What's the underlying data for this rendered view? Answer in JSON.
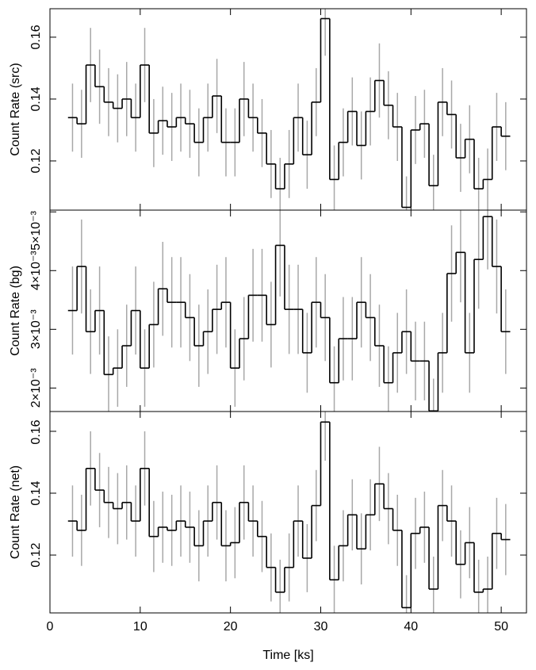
{
  "chart_data": [
    {
      "type": "step",
      "ylabel": "Count Rate (src)",
      "color": "#000000",
      "error_color": "#a8a8a8",
      "xlim": [
        0,
        52.8
      ],
      "xticks": [
        0,
        10,
        20,
        30,
        40,
        50
      ],
      "ylim": [
        0.1041,
        0.1692
      ],
      "yticks": [
        0.12,
        0.14,
        0.16
      ],
      "x": [
        2.5,
        3.5,
        4.5,
        5.5,
        6.5,
        7.5,
        8.5,
        9.5,
        10.5,
        11.5,
        12.5,
        13.5,
        14.5,
        15.5,
        16.5,
        17.5,
        18.5,
        19.5,
        20.5,
        21.5,
        22.5,
        23.5,
        24.5,
        25.5,
        26.5,
        27.5,
        28.5,
        29.5,
        30.5,
        31.5,
        32.5,
        33.5,
        34.5,
        35.5,
        36.5,
        37.5,
        38.5,
        39.5,
        40.5,
        41.5,
        42.5,
        43.5,
        44.5,
        45.5,
        46.5,
        47.5,
        48.5,
        49.5,
        50.5
      ],
      "values": [
        0.134,
        0.132,
        0.151,
        0.144,
        0.139,
        0.137,
        0.14,
        0.134,
        0.151,
        0.129,
        0.133,
        0.131,
        0.134,
        0.132,
        0.126,
        0.134,
        0.141,
        0.126,
        0.126,
        0.14,
        0.134,
        0.129,
        0.119,
        0.111,
        0.119,
        0.134,
        0.122,
        0.139,
        0.166,
        0.114,
        0.126,
        0.136,
        0.125,
        0.136,
        0.146,
        0.138,
        0.131,
        0.105,
        0.13,
        0.132,
        0.112,
        0.139,
        0.135,
        0.121,
        0.127,
        0.111,
        0.114,
        0.131,
        0.128
      ],
      "errors": [
        0.011,
        0.011,
        0.012,
        0.012,
        0.011,
        0.011,
        0.012,
        0.011,
        0.012,
        0.011,
        0.011,
        0.011,
        0.011,
        0.011,
        0.011,
        0.011,
        0.012,
        0.011,
        0.011,
        0.012,
        0.011,
        0.011,
        0.011,
        0.01,
        0.011,
        0.011,
        0.011,
        0.011,
        0.012,
        0.011,
        0.011,
        0.011,
        0.011,
        0.011,
        0.012,
        0.011,
        0.011,
        0.01,
        0.011,
        0.011,
        0.01,
        0.011,
        0.011,
        0.011,
        0.011,
        0.01,
        0.01,
        0.011,
        0.011
      ]
    },
    {
      "type": "step",
      "ylabel": "Count Rate (bg)",
      "color": "#000000",
      "error_color": "#a8a8a8",
      "xlim": [
        0,
        52.8
      ],
      "xticks": [
        0,
        10,
        20,
        30,
        40,
        50
      ],
      "ylim": [
        0.0016,
        0.00503
      ],
      "yticks": [
        {
          "value": 0.002,
          "label": "2×10⁻³"
        },
        {
          "value": 0.003,
          "label": "3×10⁻³"
        },
        {
          "value": 0.004,
          "label": "4×10⁻³"
        },
        {
          "value": 0.005,
          "label": "5×10⁻³"
        }
      ],
      "x": [
        2.5,
        3.5,
        4.5,
        5.5,
        6.5,
        7.5,
        8.5,
        9.5,
        10.5,
        11.5,
        12.5,
        13.5,
        14.5,
        15.5,
        16.5,
        17.5,
        18.5,
        19.5,
        20.5,
        21.5,
        22.5,
        23.5,
        24.5,
        25.5,
        26.5,
        27.5,
        28.5,
        29.5,
        30.5,
        31.5,
        32.5,
        33.5,
        34.5,
        35.5,
        36.5,
        37.5,
        38.5,
        39.5,
        40.5,
        41.5,
        42.5,
        43.5,
        44.5,
        45.5,
        46.5,
        47.5,
        48.5,
        49.5,
        50.5
      ],
      "values": [
        0.00332,
        0.00407,
        0.00296,
        0.00332,
        0.00223,
        0.00234,
        0.00272,
        0.00332,
        0.00234,
        0.00308,
        0.00369,
        0.00346,
        0.00346,
        0.0032,
        0.00272,
        0.00296,
        0.00334,
        0.00346,
        0.00234,
        0.00284,
        0.00358,
        0.00358,
        0.00308,
        0.00443,
        0.00334,
        0.00334,
        0.0026,
        0.00346,
        0.0032,
        0.00209,
        0.00284,
        0.00284,
        0.00346,
        0.0032,
        0.00272,
        0.00209,
        0.0026,
        0.00296,
        0.00246,
        0.00246,
        0.00161,
        0.0026,
        0.00395,
        0.00431,
        0.0026,
        0.00419,
        0.00492,
        0.00407,
        0.00296
      ],
      "errors": [
        0.00075,
        0.0008,
        0.00072,
        0.00075,
        0.00065,
        0.00066,
        0.0007,
        0.00075,
        0.00066,
        0.00073,
        0.0008,
        0.00077,
        0.00077,
        0.00074,
        0.0007,
        0.00072,
        0.00076,
        0.00077,
        0.00066,
        0.00071,
        0.00079,
        0.00079,
        0.00073,
        0.00087,
        0.00076,
        0.00076,
        0.00068,
        0.00077,
        0.00074,
        0.00062,
        0.00071,
        0.00071,
        0.00077,
        0.00074,
        0.0007,
        0.00062,
        0.00068,
        0.00072,
        0.00067,
        0.00067,
        0.00055,
        0.00068,
        0.00082,
        0.00085,
        0.00068,
        0.00084,
        0.0009,
        0.0008,
        0.00072
      ]
    },
    {
      "type": "step",
      "ylabel": "Count Rate (net)",
      "xlabel": "Time [ks]",
      "color": "#000000",
      "error_color": "#a8a8a8",
      "xlim": [
        0,
        52.8
      ],
      "xticks": [
        0,
        10,
        20,
        30,
        40,
        50
      ],
      "ylim": [
        0.1013,
        0.1664
      ],
      "yticks": [
        0.12,
        0.14,
        0.16
      ],
      "x": [
        2.5,
        3.5,
        4.5,
        5.5,
        6.5,
        7.5,
        8.5,
        9.5,
        10.5,
        11.5,
        12.5,
        13.5,
        14.5,
        15.5,
        16.5,
        17.5,
        18.5,
        19.5,
        20.5,
        21.5,
        22.5,
        23.5,
        24.5,
        25.5,
        26.5,
        27.5,
        28.5,
        29.5,
        30.5,
        31.5,
        32.5,
        33.5,
        34.5,
        35.5,
        36.5,
        37.5,
        38.5,
        39.5,
        40.5,
        41.5,
        42.5,
        43.5,
        44.5,
        45.5,
        46.5,
        47.5,
        48.5,
        49.5,
        50.5
      ],
      "values": [
        0.131,
        0.128,
        0.148,
        0.141,
        0.137,
        0.135,
        0.137,
        0.131,
        0.148,
        0.126,
        0.129,
        0.128,
        0.131,
        0.129,
        0.123,
        0.131,
        0.137,
        0.123,
        0.124,
        0.137,
        0.131,
        0.126,
        0.116,
        0.108,
        0.116,
        0.131,
        0.119,
        0.136,
        0.163,
        0.112,
        0.123,
        0.133,
        0.122,
        0.133,
        0.143,
        0.135,
        0.128,
        0.103,
        0.127,
        0.129,
        0.109,
        0.136,
        0.131,
        0.117,
        0.124,
        0.108,
        0.109,
        0.127,
        0.125
      ],
      "errors": [
        0.0115,
        0.0115,
        0.012,
        0.012,
        0.0115,
        0.0115,
        0.012,
        0.0115,
        0.012,
        0.0115,
        0.0115,
        0.0115,
        0.0115,
        0.0115,
        0.0115,
        0.0115,
        0.012,
        0.0115,
        0.0115,
        0.012,
        0.0115,
        0.0115,
        0.011,
        0.0105,
        0.011,
        0.0115,
        0.011,
        0.0115,
        0.0125,
        0.011,
        0.0115,
        0.0115,
        0.0115,
        0.0115,
        0.012,
        0.0115,
        0.0115,
        0.0105,
        0.0115,
        0.0115,
        0.0105,
        0.0115,
        0.0115,
        0.011,
        0.0115,
        0.0105,
        0.0105,
        0.0115,
        0.0115
      ]
    }
  ]
}
